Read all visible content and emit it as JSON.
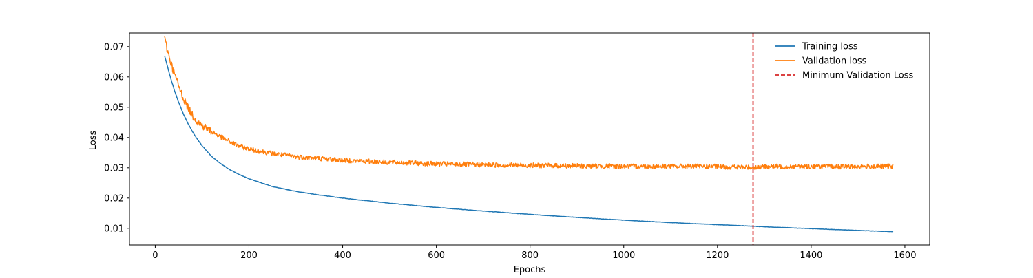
{
  "chart_data": {
    "type": "line",
    "title": "",
    "xlabel": "Epochs",
    "ylabel": "Loss",
    "xlim": [
      -55,
      1653
    ],
    "ylim": [
      0.0045,
      0.0745
    ],
    "xticks": [
      0,
      200,
      400,
      600,
      800,
      1000,
      1200,
      1400,
      1600
    ],
    "yticks": [
      0.01,
      0.02,
      0.03,
      0.04,
      0.05,
      0.06,
      0.07
    ],
    "xtick_labels": [
      "0",
      "200",
      "400",
      "600",
      "800",
      "1000",
      "1200",
      "1400",
      "1600"
    ],
    "ytick_labels": [
      "0.01",
      "0.02",
      "0.03",
      "0.04",
      "0.05",
      "0.06",
      "0.07"
    ],
    "grid": false,
    "legend_position": "top-right",
    "series": [
      {
        "name": "Training loss",
        "color": "#1f77b4",
        "style": "solid",
        "x": [
          20,
          30,
          40,
          50,
          60,
          70,
          80,
          90,
          100,
          120,
          140,
          160,
          180,
          200,
          250,
          300,
          350,
          400,
          500,
          600,
          700,
          800,
          900,
          1000,
          1100,
          1200,
          1276,
          1300,
          1400,
          1500,
          1575
        ],
        "y": [
          0.067,
          0.0612,
          0.056,
          0.0516,
          0.0478,
          0.0446,
          0.0418,
          0.0394,
          0.0373,
          0.0338,
          0.0313,
          0.0293,
          0.0277,
          0.0264,
          0.0238,
          0.0222,
          0.021,
          0.02,
          0.0183,
          0.0169,
          0.0157,
          0.0146,
          0.0136,
          0.0127,
          0.0119,
          0.0112,
          0.0107,
          0.0105,
          0.0099,
          0.0093,
          0.0089
        ]
      },
      {
        "name": "Validation loss",
        "color": "#ff7f0e",
        "style": "solid",
        "x": [
          20,
          30,
          40,
          50,
          60,
          70,
          80,
          90,
          100,
          120,
          140,
          160,
          180,
          200,
          250,
          300,
          350,
          400,
          500,
          600,
          700,
          800,
          900,
          1000,
          1100,
          1200,
          1276,
          1300,
          1400,
          1500,
          1575
        ],
        "y": [
          0.0725,
          0.0665,
          0.0615,
          0.057,
          0.053,
          0.0498,
          0.0472,
          0.0452,
          0.044,
          0.042,
          0.0402,
          0.0385,
          0.0372,
          0.0362,
          0.0347,
          0.0337,
          0.0331,
          0.0325,
          0.0318,
          0.0313,
          0.031,
          0.0308,
          0.0306,
          0.0305,
          0.0305,
          0.0304,
          0.0301,
          0.0304,
          0.0304,
          0.0304,
          0.0305
        ]
      }
    ],
    "vlines": [
      {
        "name": "Minimum Validation Loss",
        "x": 1276,
        "color": "#d62728",
        "style": "dashed"
      }
    ]
  }
}
